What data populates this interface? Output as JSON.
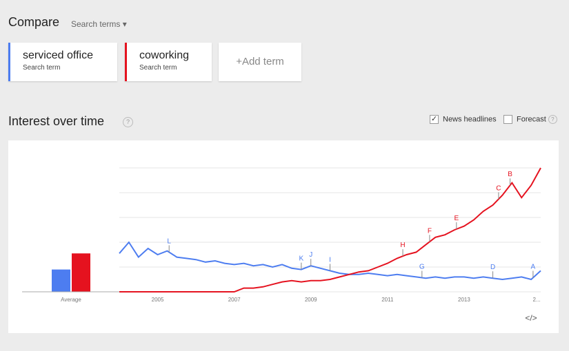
{
  "header": {
    "title": "Compare",
    "dropdown": "Search terms"
  },
  "terms": [
    {
      "sub": "Search term"
    },
    {
      "sub": "Search term"
    }
  ],
  "add_term": "+Add term",
  "section": {
    "title": "Interest over time",
    "help": "?",
    "options": [
      {
        "label": "News headlines",
        "checked": true
      },
      {
        "label": "Forecast",
        "checked": false,
        "help": "?"
      }
    ],
    "embed": "</>"
  },
  "chart_data": [
    {
      "type": "bar",
      "categories": [
        "Average"
      ],
      "ylim": [
        0,
        100
      ],
      "series": [
        {
          "color": "#4d7df0",
          "values": [
            18
          ]
        },
        {
          "color": "#e5121f",
          "values": [
            31
          ]
        }
      ]
    },
    {
      "type": "line",
      "xlim": [
        2004,
        2015
      ],
      "ylim": [
        0,
        100
      ],
      "grid": true,
      "yticks": [
        0,
        20,
        40,
        60,
        80,
        100
      ],
      "xticks": [
        2005,
        2007,
        2009,
        2011,
        2013,
        {
          "value": 2015,
          "label": "2..."
        }
      ],
      "x": [
        2004,
        2004.25,
        2004.5,
        2004.75,
        2005,
        2005.25,
        2005.5,
        2005.75,
        2006,
        2006.25,
        2006.5,
        2006.75,
        2007,
        2007.25,
        2007.5,
        2007.75,
        2008,
        2008.25,
        2008.5,
        2008.75,
        2009,
        2009.25,
        2009.5,
        2009.75,
        2010,
        2010.25,
        2010.5,
        2010.75,
        2011,
        2011.25,
        2011.5,
        2011.75,
        2012,
        2012.25,
        2012.5,
        2012.75,
        2013,
        2013.25,
        2013.5,
        2013.75,
        2014,
        2014.25,
        2014.5,
        2014.75,
        2015
      ],
      "series": [
        {
          "name": "serviced office",
          "color": "#4d7df0",
          "values": [
            31,
            40,
            28,
            35,
            30,
            33,
            28,
            27,
            26,
            24,
            25,
            23,
            22,
            23,
            21,
            22,
            20,
            22,
            19,
            18,
            21,
            19,
            17,
            15,
            14,
            14,
            15,
            14,
            13,
            14,
            13,
            12,
            11,
            12,
            11,
            12,
            12,
            11,
            12,
            11,
            10,
            11,
            12,
            10,
            17
          ]
        },
        {
          "name": "coworking",
          "color": "#e5121f",
          "values": [
            0,
            0,
            0,
            0,
            0,
            0,
            0,
            0,
            0,
            0,
            0,
            0,
            0,
            3,
            3,
            4,
            6,
            8,
            9,
            8,
            9,
            9,
            10,
            12,
            14,
            16,
            17,
            20,
            23,
            27,
            30,
            32,
            38,
            44,
            46,
            50,
            53,
            58,
            65,
            70,
            78,
            88,
            76,
            86,
            100
          ]
        }
      ],
      "annotations": [
        {
          "label": "L",
          "x": 2005.3,
          "series": 0
        },
        {
          "label": "K",
          "x": 2008.75,
          "series": 0
        },
        {
          "label": "J",
          "x": 2009,
          "series": 0
        },
        {
          "label": "I",
          "x": 2009.5,
          "series": 0
        },
        {
          "label": "G",
          "x": 2011.9,
          "series": 0
        },
        {
          "label": "D",
          "x": 2013.75,
          "series": 0
        },
        {
          "label": "A",
          "x": 2014.8,
          "series": 0
        },
        {
          "label": "H",
          "x": 2011.4,
          "series": 1
        },
        {
          "label": "F",
          "x": 2012.1,
          "series": 1
        },
        {
          "label": "E",
          "x": 2012.8,
          "series": 1
        },
        {
          "label": "C",
          "x": 2013.9,
          "series": 1
        },
        {
          "label": "B",
          "x": 2014.2,
          "series": 1
        }
      ]
    }
  ]
}
